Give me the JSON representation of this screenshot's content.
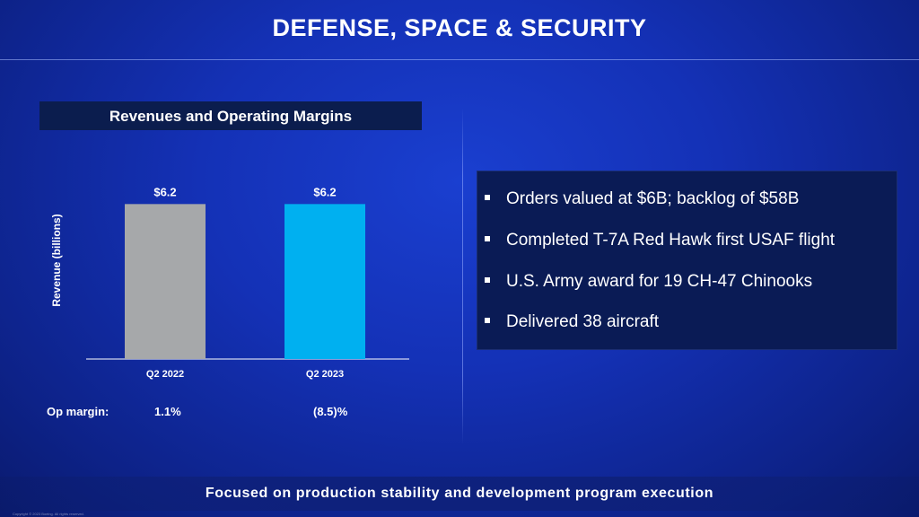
{
  "header": {
    "title": "DEFENSE, SPACE & SECURITY"
  },
  "chart_panel": {
    "title": "Revenues and Operating Margins"
  },
  "chart_data": {
    "type": "bar",
    "categories": [
      "Q2 2022",
      "Q2 2023"
    ],
    "values": [
      6.2,
      6.2
    ],
    "value_labels": [
      "$6.2",
      "$6.2"
    ],
    "bar_colors": [
      "#a6a8aa",
      "#00b0f0"
    ],
    "ylabel": "Revenue (billions)",
    "xlabel": "",
    "ylim": [
      0,
      7.9
    ],
    "grid": false,
    "legend": "none"
  },
  "op_margin": {
    "label": "Op margin:",
    "values": [
      "1.1%",
      "(8.5)%"
    ]
  },
  "highlights": [
    "Orders valued at $6B; backlog of $58B",
    "Completed T-7A Red Hawk first USAF flight",
    "U.S. Army award for 19 CH-47 Chinooks",
    "Delivered 38 aircraft"
  ],
  "footer": {
    "text": "Focused on production stability and development program execution",
    "copyright": "Copyright © 2023 Boeing. All rights reserved."
  },
  "colors": {
    "background": "#1431b6",
    "panel_dark": "#0a1b55",
    "accent_blue": "#00b0f0",
    "prior_gray": "#a6a8aa"
  }
}
